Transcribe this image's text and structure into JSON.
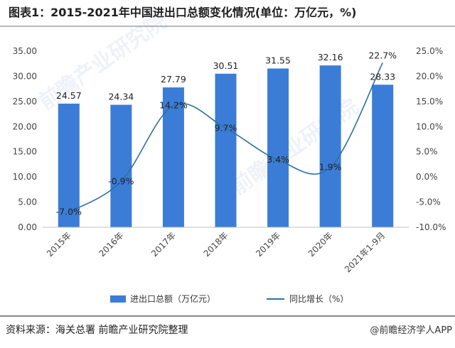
{
  "header": {
    "title": "图表1：2015-2021年中国进出口总额变化情况(单位：万亿元，%)"
  },
  "chart_data": {
    "type": "bar",
    "title": "图表1：2015-2021年中国进出口总额变化情况(单位：万亿元，%)",
    "categories": [
      "2015年",
      "2016年",
      "2017年",
      "2018年",
      "2019年",
      "2020年",
      "2021年1-9月"
    ],
    "series": [
      {
        "name": "进出口总额（万亿元）",
        "type": "bar",
        "axis": "left",
        "values": [
          24.57,
          24.34,
          27.79,
          30.51,
          31.55,
          32.16,
          28.33
        ],
        "labels": [
          "24.57",
          "24.34",
          "27.79",
          "30.51",
          "31.55",
          "32.16",
          "28.33"
        ]
      },
      {
        "name": "同比增长（%）",
        "type": "line",
        "axis": "right",
        "values": [
          -7.0,
          -0.9,
          14.2,
          9.7,
          3.4,
          1.9,
          22.7
        ],
        "labels": [
          "-7.0%",
          "-0.9%",
          "14.2%",
          "9.7%",
          "3.4%",
          "1.9%",
          "22.7%"
        ]
      }
    ],
    "y_left": {
      "lim": [
        0,
        35
      ],
      "ticks": [
        0,
        5,
        10,
        15,
        20,
        25,
        30,
        35
      ],
      "tick_labels": [
        "0.00",
        "5.00",
        "10.00",
        "15.00",
        "20.00",
        "25.00",
        "30.00",
        "35.00"
      ]
    },
    "y_right": {
      "lim": [
        -10,
        25
      ],
      "ticks": [
        -10,
        -5,
        0,
        5,
        10,
        15,
        20,
        25
      ],
      "tick_labels": [
        "-10.0%",
        "-5.0%",
        "0.0%",
        "5.0%",
        "10.0%",
        "15.0%",
        "20.0%",
        "25.0%"
      ]
    },
    "legend": [
      "进出口总额（万亿元）",
      "同比增长（%）"
    ],
    "legend_position": "bottom",
    "grid": false,
    "colors": {
      "bar": "#3b7dd6",
      "line": "#2e6fa6"
    }
  },
  "watermark": "前瞻产业研究院",
  "footer": {
    "source": "资料来源：海关总署 前瞻产业研究院整理",
    "brand": "@前瞻经济学人APP"
  }
}
